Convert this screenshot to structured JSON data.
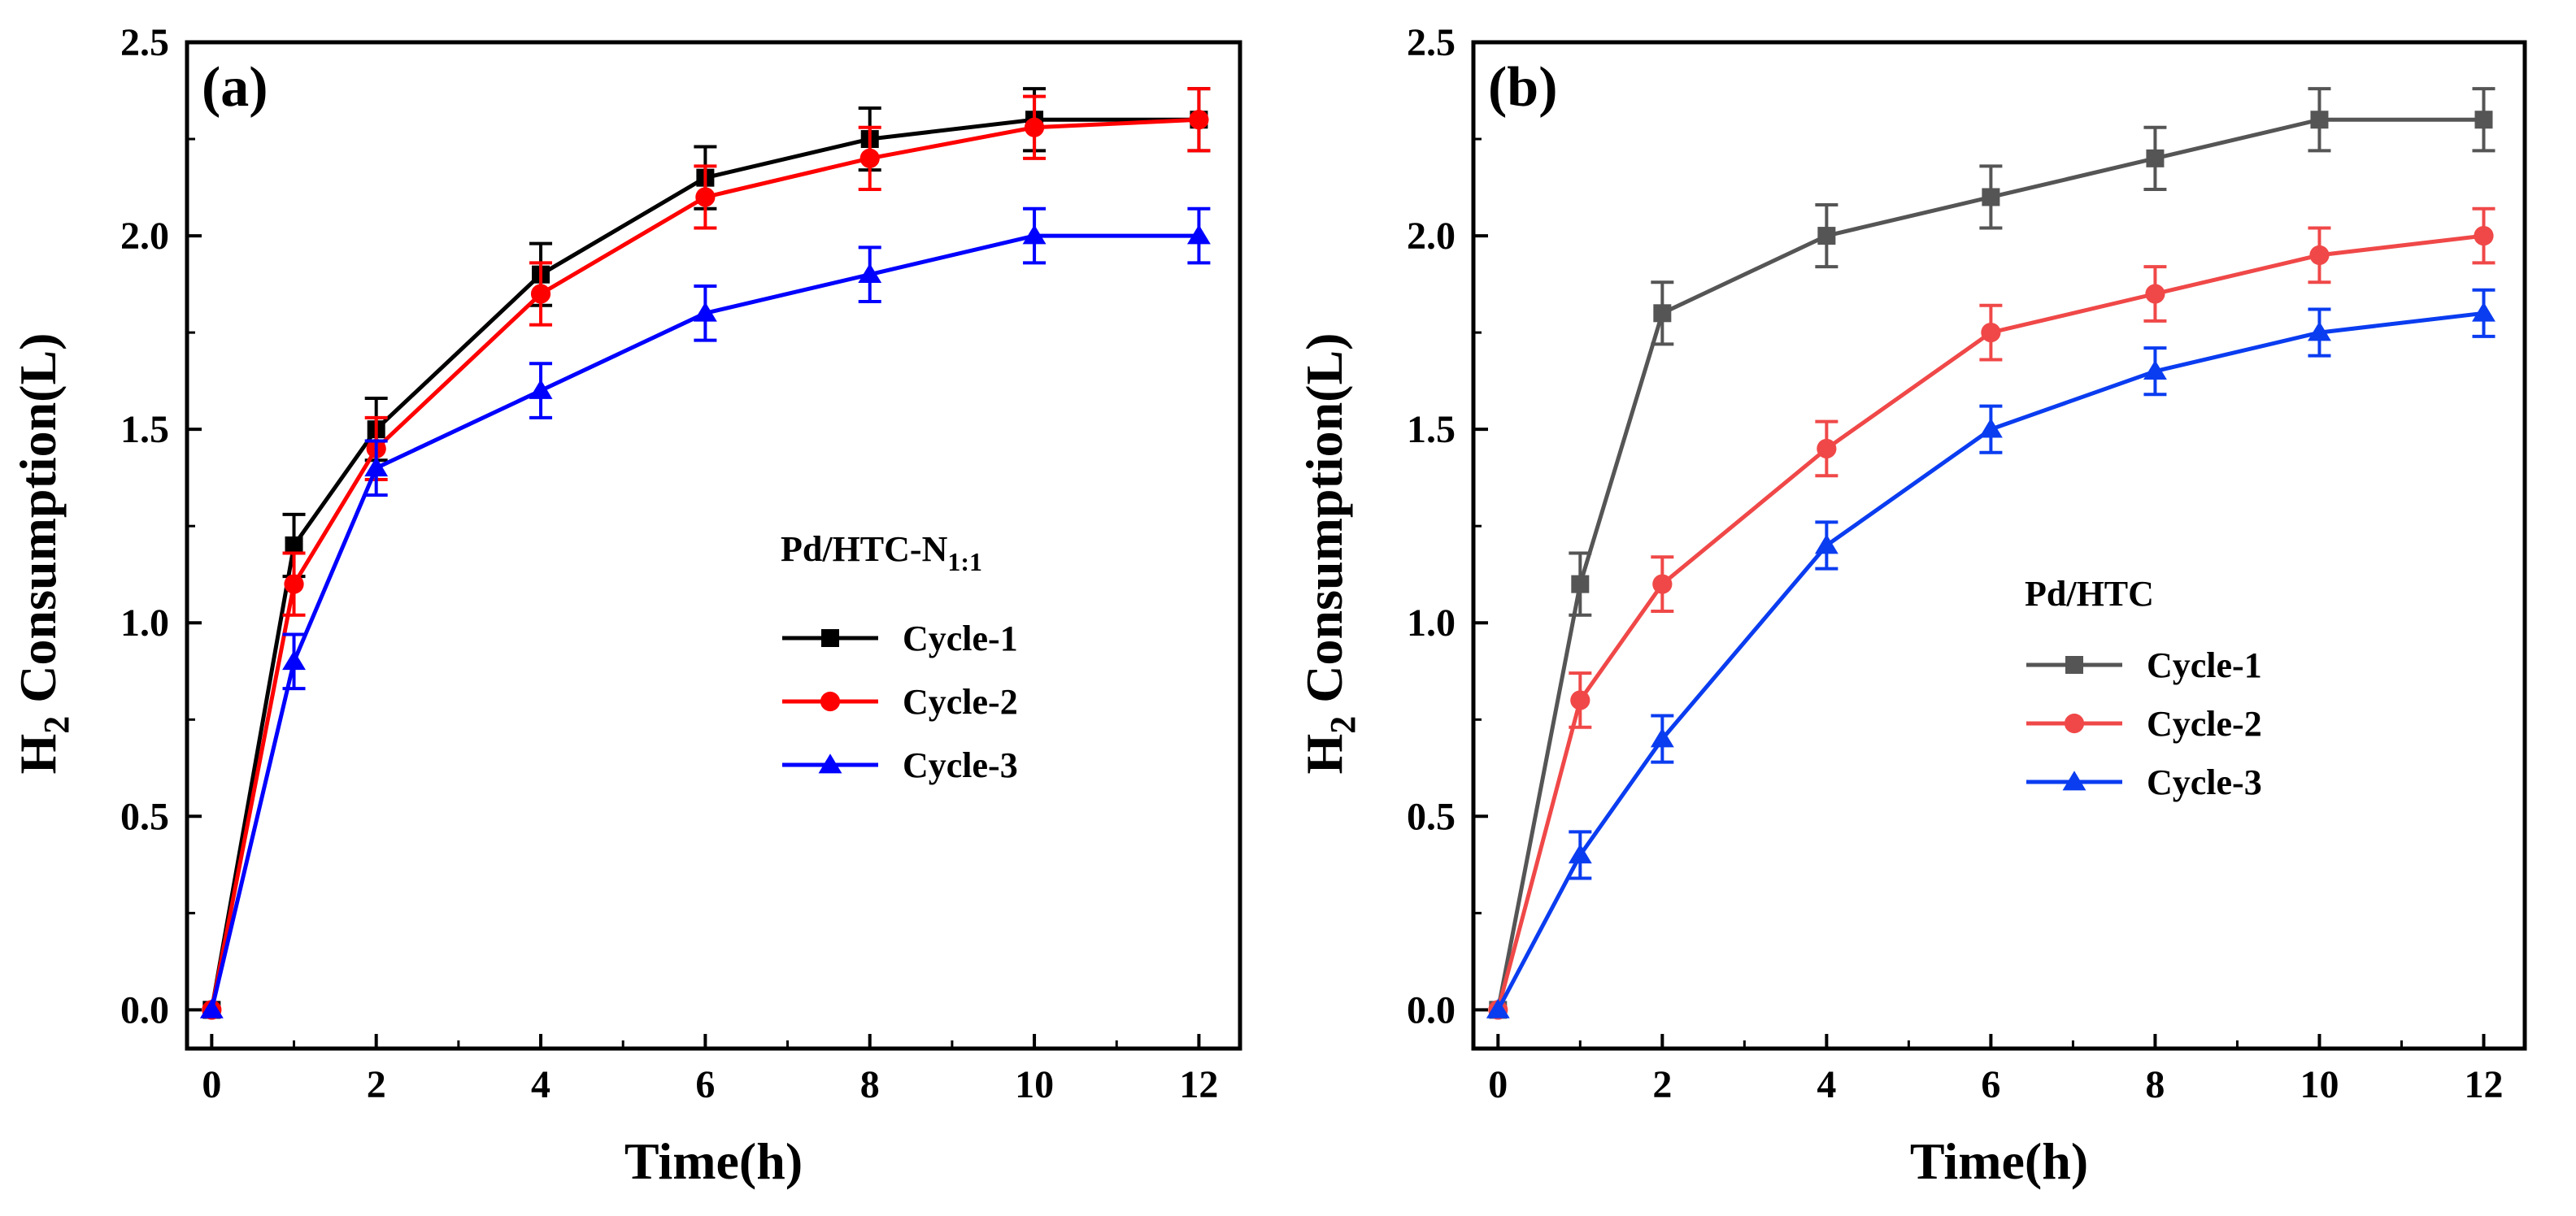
{
  "chart_data": [
    {
      "type": "line",
      "panel_label": "(a)",
      "x": [
        0,
        1,
        2,
        4,
        6,
        8,
        10,
        12
      ],
      "xlabel": "Time(h)",
      "ylabel_main": "H",
      "ylabel_sub": "2",
      "ylabel_rest": " Consumption(L)",
      "xlim": [
        -0.3,
        12.5
      ],
      "ylim": [
        -0.1,
        2.5
      ],
      "xticks": [
        0,
        2,
        4,
        6,
        8,
        10,
        12
      ],
      "yticks": [
        0.0,
        0.5,
        1.0,
        1.5,
        2.0,
        2.5
      ],
      "ytick_labels": [
        "0.0",
        "0.5",
        "1.0",
        "1.5",
        "2.0",
        "2.5"
      ],
      "legend_title_main": "Pd/HTC-N",
      "legend_title_sub": "1:1",
      "legend_position": "right-middle",
      "series": [
        {
          "name": "Cycle-1",
          "color": "#000000",
          "marker": "square",
          "values": [
            0,
            1.2,
            1.5,
            1.9,
            2.15,
            2.25,
            2.3,
            2.3
          ],
          "error": [
            0,
            0.08,
            0.08,
            0.08,
            0.08,
            0.08,
            0.08,
            0.08
          ]
        },
        {
          "name": "Cycle-2",
          "color": "#ff0000",
          "marker": "circle",
          "values": [
            0,
            1.1,
            1.45,
            1.85,
            2.1,
            2.2,
            2.28,
            2.3
          ],
          "error": [
            0,
            0.08,
            0.08,
            0.08,
            0.08,
            0.08,
            0.08,
            0.08
          ]
        },
        {
          "name": "Cycle-3",
          "color": "#0000ff",
          "marker": "triangle",
          "values": [
            0,
            0.9,
            1.4,
            1.6,
            1.8,
            1.9,
            2.0,
            2.0
          ],
          "error": [
            0,
            0.07,
            0.07,
            0.07,
            0.07,
            0.07,
            0.07,
            0.07
          ]
        }
      ]
    },
    {
      "type": "line",
      "panel_label": "(b)",
      "x": [
        0,
        1,
        2,
        4,
        6,
        8,
        10,
        12
      ],
      "xlabel": "Time(h)",
      "ylabel_main": "H",
      "ylabel_sub": "2",
      "ylabel_rest": " Consumption(L)",
      "xlim": [
        -0.3,
        12.5
      ],
      "ylim": [
        -0.1,
        2.5
      ],
      "xticks": [
        0,
        2,
        4,
        6,
        8,
        10,
        12
      ],
      "yticks": [
        0.0,
        0.5,
        1.0,
        1.5,
        2.0,
        2.5
      ],
      "ytick_labels": [
        "0.0",
        "0.5",
        "1.0",
        "1.5",
        "2.0",
        "2.5"
      ],
      "legend_title_main": "Pd/HTC",
      "legend_title_sub": "",
      "legend_position": "right-middle",
      "series": [
        {
          "name": "Cycle-1",
          "color": "#555555",
          "marker": "square",
          "values": [
            0,
            1.1,
            1.8,
            2.0,
            2.1,
            2.2,
            2.3,
            2.3
          ],
          "error": [
            0,
            0.08,
            0.08,
            0.08,
            0.08,
            0.08,
            0.08,
            0.08
          ]
        },
        {
          "name": "Cycle-2",
          "color": "#f04848",
          "marker": "circle",
          "values": [
            0,
            0.8,
            1.1,
            1.45,
            1.75,
            1.85,
            1.95,
            2.0
          ],
          "error": [
            0,
            0.07,
            0.07,
            0.07,
            0.07,
            0.07,
            0.07,
            0.07
          ]
        },
        {
          "name": "Cycle-3",
          "color": "#0a3cf0",
          "marker": "triangle",
          "values": [
            0,
            0.4,
            0.7,
            1.2,
            1.5,
            1.65,
            1.75,
            1.8
          ],
          "error": [
            0,
            0.06,
            0.06,
            0.06,
            0.06,
            0.06,
            0.06,
            0.06
          ]
        }
      ]
    }
  ]
}
